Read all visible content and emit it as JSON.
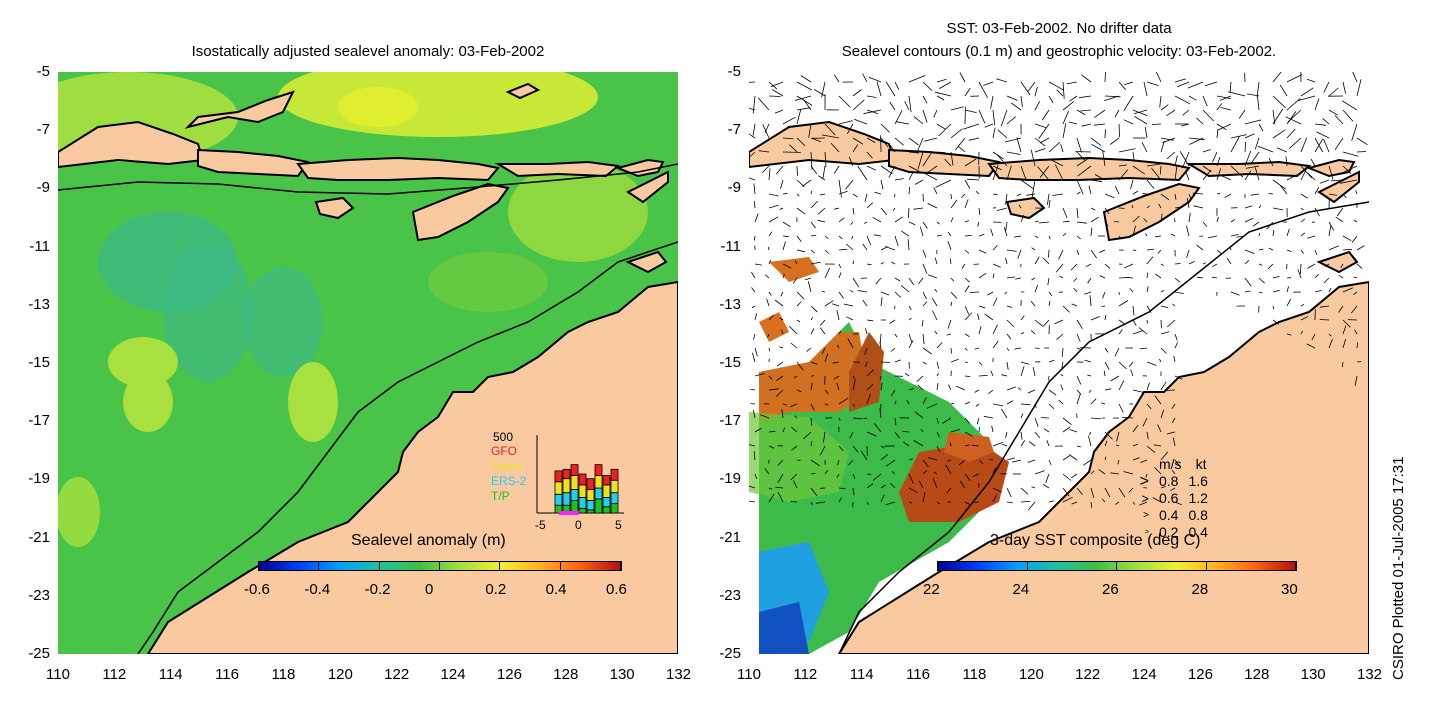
{
  "left_panel": {
    "title": "Isostatically adjusted sealevel anomaly: 03-Feb-2002",
    "y_ticks": [
      "-5",
      "-7",
      "-9",
      "-11",
      "-13",
      "-15",
      "-17",
      "-19",
      "-21",
      "-23",
      "-25"
    ],
    "x_ticks": [
      "110",
      "112",
      "114",
      "116",
      "118",
      "120",
      "122",
      "124",
      "126",
      "128",
      "130",
      "132"
    ],
    "colorbar": {
      "label": "Sealevel anomaly (m)",
      "ticks": [
        "-0.6",
        "-0.4",
        "-0.2",
        "0",
        "0.2",
        "0.4",
        "0.6"
      ],
      "range": [
        -0.6,
        0.6
      ]
    },
    "satellite_histogram": {
      "max_label": "500",
      "legend": [
        {
          "name": "GFO",
          "color": "#ee2020"
        },
        {
          "name": "Jason",
          "color": "#f0e020"
        },
        {
          "name": "ERS-2",
          "color": "#20d0f0"
        },
        {
          "name": "T/P",
          "color": "#20c020"
        }
      ],
      "x_ticks": [
        "-5",
        "0",
        "5"
      ],
      "days": [
        -5,
        -4,
        -3,
        -2,
        -1,
        0,
        1,
        2,
        3,
        4,
        5
      ],
      "stacks": [
        [
          0,
          0,
          0,
          0
        ],
        [
          0,
          0,
          0,
          0
        ],
        [
          70,
          80,
          70,
          50
        ],
        [
          60,
          90,
          80,
          50
        ],
        [
          70,
          90,
          70,
          80
        ],
        [
          70,
          80,
          70,
          30
        ],
        [
          70,
          70,
          60,
          20
        ],
        [
          70,
          80,
          70,
          90
        ],
        [
          60,
          80,
          60,
          40
        ],
        [
          70,
          80,
          70,
          60
        ],
        [
          0,
          0,
          0,
          0
        ]
      ]
    },
    "land_color": "#f9c9a0",
    "ocean_color": "#49c449"
  },
  "right_panel": {
    "title_line1": "SST: 03-Feb-2002. No drifter data",
    "title_line2": "Sealevel contours (0.1 m) and geostrophic velocity: 03-Feb-2002.",
    "y_ticks": [
      "-5",
      "-7",
      "-9",
      "-11",
      "-13",
      "-15",
      "-17",
      "-19",
      "-21",
      "-23",
      "-25"
    ],
    "x_ticks": [
      "110",
      "112",
      "114",
      "116",
      "118",
      "120",
      "122",
      "124",
      "126",
      "128",
      "130",
      "132"
    ],
    "colorbar": {
      "label": "3-day SST composite (deg C)",
      "ticks": [
        "22",
        "24",
        "26",
        "28",
        "30"
      ],
      "range": [
        22,
        30
      ]
    },
    "speed_legend": {
      "header_ms": "m/s",
      "header_kt": "kt",
      "rows": [
        {
          "ms": "0.8",
          "kt": "1.6"
        },
        {
          "ms": "0.6",
          "kt": "1.2"
        },
        {
          "ms": "0.4",
          "kt": "0.8"
        },
        {
          "ms": "0.2",
          "kt": "0.4"
        }
      ]
    }
  },
  "map_extent": {
    "lon": [
      110,
      132
    ],
    "lat": [
      -25,
      -5
    ]
  },
  "credit": "CSIRO Plotted 01-Jul-2005 17:31"
}
